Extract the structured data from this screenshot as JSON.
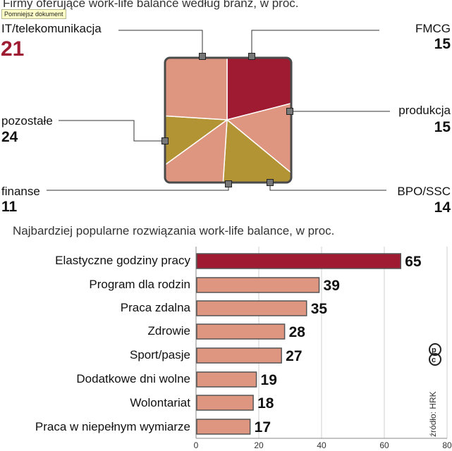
{
  "pie_title": "Firmy oferujące work-life balance według branż, w proc.",
  "tooltip": "Pomniejsz dokument",
  "bar_title": "Najbardziej popularne rozwiązania work-life balance, w proc.",
  "source": "źródło: HRK",
  "logo_text": "cp",
  "colors": {
    "highlight": "#9e1b32",
    "salmon": "#df9680",
    "gold": "#b39435"
  },
  "chart_data": [
    {
      "type": "pie",
      "title": "Firmy oferujące work-life balance według branż, w proc.",
      "slices": [
        {
          "label": "IT/telekomunikacja",
          "value": 21,
          "display": "21",
          "color": "#9e1b32"
        },
        {
          "label": "FMCG",
          "value": 15,
          "display": "15",
          "color": "#df9680"
        },
        {
          "label": "produkcja",
          "value": 15,
          "display": "15",
          "color": "#b39435"
        },
        {
          "label": "BPO/SSC",
          "value": 14,
          "display": "14",
          "color": "#df9680"
        },
        {
          "label": "finanse",
          "value": 11,
          "display": "11",
          "color": "#b39435"
        },
        {
          "label": "pozostałe",
          "value": 24,
          "display": "24",
          "color": "#df9680"
        }
      ]
    },
    {
      "type": "bar",
      "orientation": "horizontal",
      "title": "Najbardziej popularne rozwiązania work-life balance, w proc.",
      "categories": [
        "Elastyczne godziny pracy",
        "Program dla rodzin",
        "Praca zdalna",
        "Zdrowie",
        "Sport/pasje",
        "Dodatkowe dni wolne",
        "Wolontariat",
        "Praca w niepełnym wymiarze"
      ],
      "values": [
        65,
        39,
        35,
        28,
        27,
        19,
        18,
        17
      ],
      "value_labels": [
        "65",
        "39",
        "35",
        "28",
        "27",
        "19",
        "18",
        "17"
      ],
      "highlight_index": 0,
      "xlim": [
        0,
        80
      ],
      "xticks": [
        0,
        20,
        40,
        60,
        80
      ],
      "xtick_labels": [
        "0",
        "20",
        "40",
        "60",
        "80"
      ],
      "grid": true
    }
  ]
}
